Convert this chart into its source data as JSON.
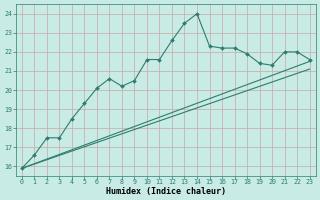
{
  "title": "",
  "xlabel": "Humidex (Indice chaleur)",
  "ylabel": "",
  "x_ticks": [
    0,
    1,
    2,
    3,
    4,
    5,
    6,
    7,
    8,
    9,
    10,
    11,
    12,
    13,
    14,
    15,
    16,
    17,
    18,
    19,
    20,
    21,
    22,
    23
  ],
  "y_ticks": [
    16,
    17,
    18,
    19,
    20,
    21,
    22,
    23,
    24
  ],
  "xlim": [
    -0.5,
    23.5
  ],
  "ylim": [
    15.5,
    24.5
  ],
  "bg_color": "#c8ebe5",
  "grid_color": "#b0ccc8",
  "line_color": "#2e7d6e",
  "line1_x": [
    0,
    1,
    2,
    3,
    4,
    5,
    6,
    7,
    8,
    9,
    10,
    11,
    12,
    13,
    14,
    15,
    16,
    17,
    18,
    19,
    20,
    21,
    22,
    23
  ],
  "line1_y": [
    15.9,
    16.6,
    17.5,
    17.5,
    18.5,
    19.3,
    20.1,
    20.6,
    20.2,
    20.5,
    21.6,
    21.6,
    22.6,
    23.5,
    24.0,
    22.3,
    22.2,
    22.2,
    21.9,
    21.4,
    21.3,
    22.0,
    22.0,
    21.6
  ],
  "line2_x": [
    0,
    23
  ],
  "line2_y": [
    15.9,
    21.1
  ],
  "line3_x": [
    0,
    23
  ],
  "line3_y": [
    15.9,
    21.5
  ],
  "xlabel_fontsize": 6.0,
  "tick_fontsize": 4.8,
  "grid_color_red": "#c8a0a0",
  "spine_color": "#2e7d6e"
}
